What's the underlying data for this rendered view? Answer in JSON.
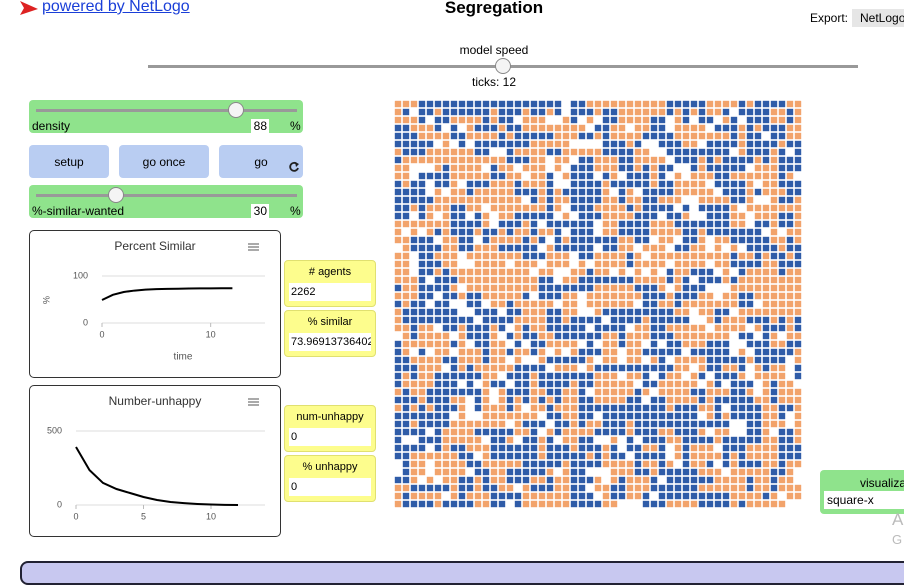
{
  "header": {
    "link": "powered by NetLogo",
    "title": "Segregation",
    "export_label": "Export:",
    "export_button": "NetLogo"
  },
  "speed": {
    "label": "model speed",
    "ticks": "ticks: 12"
  },
  "density": {
    "label": "density",
    "value": "88",
    "unit": "%"
  },
  "buttons": [
    "setup",
    "go once",
    "go"
  ],
  "similar_wanted": {
    "label": "%-similar-wanted",
    "value": "30",
    "unit": "%"
  },
  "monitors": [
    {
      "label": "# agents",
      "value": "2262"
    },
    {
      "label": "% similar",
      "value": "73.96913736402"
    },
    {
      "label": "num-unhappy",
      "value": "0"
    },
    {
      "label": "% unhappy",
      "value": "0"
    }
  ],
  "chooser": {
    "label": "visualiza",
    "value": "square-x"
  },
  "watermark": [
    "A",
    "G"
  ],
  "chart_data": [
    {
      "type": "line",
      "title": "Percent Similar",
      "x_label": "time",
      "y_label": "%",
      "color": "#000000",
      "x": [
        0,
        1,
        2,
        3,
        4,
        5,
        6,
        7,
        8,
        9,
        10,
        11,
        12
      ],
      "values": [
        49,
        60,
        66,
        69,
        71,
        72,
        72.5,
        73,
        73.5,
        73.7,
        73.8,
        74,
        74
      ],
      "xlim": [
        0,
        15
      ],
      "ylim": [
        0,
        100
      ],
      "xticks": [
        0,
        10
      ],
      "yticks": [
        0,
        100
      ],
      "grid": true
    },
    {
      "type": "line",
      "title": "Number-unhappy",
      "color": "#000000",
      "x": [
        0,
        1,
        2,
        3,
        4,
        5,
        6,
        7,
        8,
        9,
        10,
        11,
        12
      ],
      "values": [
        392,
        236,
        149,
        108,
        81,
        54,
        34,
        20,
        13,
        7,
        3,
        1,
        0
      ],
      "xlim": [
        0,
        14
      ],
      "ylim": [
        0,
        500
      ],
      "xticks": [
        0,
        5,
        10
      ],
      "yticks": [
        0,
        500
      ],
      "grid": true
    }
  ]
}
